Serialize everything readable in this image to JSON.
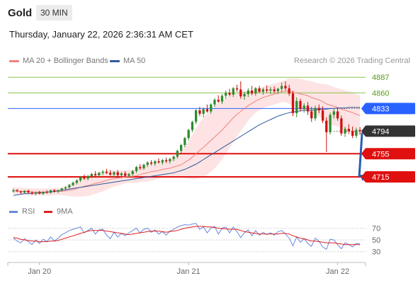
{
  "header": {
    "symbol": "Gold",
    "timeframe": "30 MIN",
    "datetime": "Thursday, January 22, 2026 2:36:31 AM CET"
  },
  "legend": {
    "ma20_label": "MA 20 + Bollinger Bands",
    "ma50_label": "MA 50",
    "credit": "Research © 2026 Trading Central"
  },
  "rsi_legend": {
    "rsi_label": "RSI",
    "ma_label": "9MA"
  },
  "colors": {
    "ma20": "#f08080",
    "band_fill": "#fde0e0",
    "ma50": "#2c5aa0",
    "bull": "#2e8b2e",
    "bear": "#d01010",
    "resistance": "#8bc34a",
    "support": "#e01010",
    "pivot": "#2962ff",
    "last": "#333333",
    "rsi": "#6688dd",
    "rsi_ma": "#e02020"
  },
  "chart_data": {
    "type": "candlestick",
    "title": "",
    "price_levels": [
      {
        "value": 4887,
        "label": "4887",
        "kind": "resistance"
      },
      {
        "value": 4860,
        "label": "4860",
        "kind": "resistance"
      },
      {
        "value": 4833,
        "label": "4833",
        "kind": "pivot"
      },
      {
        "value": 4794,
        "label": "4794",
        "kind": "last"
      },
      {
        "value": 4755,
        "label": "4755",
        "kind": "support"
      },
      {
        "value": 4715,
        "label": "4715",
        "kind": "support"
      }
    ],
    "x_ticks": [
      "Jan 20",
      "Jan 21",
      "Jan 22"
    ],
    "x_tick_bars": [
      7,
      47,
      87
    ],
    "ylim": [
      4676,
      4908
    ],
    "candles": [
      [
        4690,
        4695,
        4688,
        4692
      ],
      [
        4692,
        4694,
        4689,
        4690
      ],
      [
        4690,
        4691,
        4686,
        4688
      ],
      [
        4688,
        4692,
        4686,
        4691
      ],
      [
        4691,
        4693,
        4687,
        4688
      ],
      [
        4688,
        4690,
        4684,
        4686
      ],
      [
        4686,
        4689,
        4683,
        4688
      ],
      [
        4688,
        4691,
        4685,
        4686
      ],
      [
        4686,
        4690,
        4684,
        4689
      ],
      [
        4689,
        4692,
        4686,
        4688
      ],
      [
        4688,
        4693,
        4686,
        4692
      ],
      [
        4692,
        4694,
        4688,
        4690
      ],
      [
        4690,
        4693,
        4687,
        4692
      ],
      [
        4692,
        4696,
        4690,
        4695
      ],
      [
        4695,
        4699,
        4692,
        4697
      ],
      [
        4697,
        4703,
        4695,
        4701
      ],
      [
        4701,
        4707,
        4699,
        4705
      ],
      [
        4705,
        4711,
        4702,
        4709
      ],
      [
        4709,
        4716,
        4706,
        4714
      ],
      [
        4714,
        4719,
        4710,
        4712
      ],
      [
        4712,
        4718,
        4709,
        4716
      ],
      [
        4716,
        4722,
        4713,
        4720
      ],
      [
        4720,
        4725,
        4716,
        4718
      ],
      [
        4718,
        4724,
        4715,
        4722
      ],
      [
        4722,
        4727,
        4718,
        4724
      ],
      [
        4724,
        4729,
        4720,
        4722
      ],
      [
        4722,
        4727,
        4717,
        4719
      ],
      [
        4719,
        4725,
        4714,
        4723
      ],
      [
        4723,
        4727,
        4716,
        4718
      ],
      [
        4718,
        4723,
        4713,
        4721
      ],
      [
        4721,
        4725,
        4715,
        4717
      ],
      [
        4717,
        4722,
        4714,
        4720
      ],
      [
        4720,
        4727,
        4717,
        4725
      ],
      [
        4725,
        4734,
        4722,
        4732
      ],
      [
        4732,
        4737,
        4727,
        4730
      ],
      [
        4730,
        4738,
        4727,
        4736
      ],
      [
        4736,
        4742,
        4732,
        4740
      ],
      [
        4740,
        4744,
        4735,
        4738
      ],
      [
        4738,
        4744,
        4734,
        4742
      ],
      [
        4742,
        4747,
        4738,
        4740
      ],
      [
        4740,
        4746,
        4736,
        4744
      ],
      [
        4744,
        4748,
        4739,
        4742
      ],
      [
        4742,
        4748,
        4738,
        4746
      ],
      [
        4746,
        4752,
        4742,
        4750
      ],
      [
        4750,
        4762,
        4747,
        4760
      ],
      [
        4760,
        4772,
        4756,
        4770
      ],
      [
        4770,
        4784,
        4766,
        4782
      ],
      [
        4782,
        4798,
        4778,
        4796
      ],
      [
        4796,
        4812,
        4792,
        4810
      ],
      [
        4810,
        4832,
        4806,
        4830
      ],
      [
        4830,
        4836,
        4820,
        4824
      ],
      [
        4824,
        4835,
        4818,
        4832
      ],
      [
        4832,
        4840,
        4826,
        4828
      ],
      [
        4828,
        4842,
        4824,
        4840
      ],
      [
        4840,
        4851,
        4836,
        4848
      ],
      [
        4848,
        4856,
        4843,
        4845
      ],
      [
        4845,
        4858,
        4841,
        4855
      ],
      [
        4855,
        4864,
        4850,
        4860
      ],
      [
        4860,
        4867,
        4854,
        4857
      ],
      [
        4857,
        4870,
        4853,
        4868
      ],
      [
        4868,
        4874,
        4862,
        4866
      ],
      [
        4866,
        4880,
        4850,
        4854
      ],
      [
        4854,
        4862,
        4848,
        4858
      ],
      [
        4858,
        4868,
        4853,
        4864
      ],
      [
        4864,
        4872,
        4856,
        4859
      ],
      [
        4859,
        4870,
        4855,
        4868
      ],
      [
        4868,
        4872,
        4860,
        4862
      ],
      [
        4862,
        4869,
        4857,
        4866
      ],
      [
        4866,
        4873,
        4860,
        4864
      ],
      [
        4864,
        4870,
        4858,
        4866
      ],
      [
        4866,
        4871,
        4860,
        4863
      ],
      [
        4863,
        4869,
        4858,
        4867
      ],
      [
        4867,
        4878,
        4862,
        4872
      ],
      [
        4872,
        4880,
        4864,
        4868
      ],
      [
        4868,
        4874,
        4855,
        4859
      ],
      [
        4859,
        4864,
        4820,
        4825
      ],
      [
        4825,
        4852,
        4818,
        4846
      ],
      [
        4846,
        4850,
        4828,
        4832
      ],
      [
        4832,
        4842,
        4826,
        4838
      ],
      [
        4838,
        4844,
        4822,
        4828
      ],
      [
        4828,
        4836,
        4810,
        4816
      ],
      [
        4816,
        4838,
        4812,
        4834
      ],
      [
        4834,
        4840,
        4825,
        4830
      ],
      [
        4830,
        4837,
        4808,
        4812
      ],
      [
        4812,
        4818,
        4758,
        4792
      ],
      [
        4792,
        4826,
        4788,
        4822
      ],
      [
        4822,
        4832,
        4816,
        4828
      ],
      [
        4828,
        4834,
        4812,
        4816
      ],
      [
        4816,
        4821,
        4786,
        4790
      ],
      [
        4790,
        4802,
        4784,
        4798
      ],
      [
        4798,
        4806,
        4789,
        4794
      ],
      [
        4794,
        4802,
        4782,
        4786
      ],
      [
        4786,
        4800,
        4782,
        4796
      ],
      [
        4796,
        4801,
        4788,
        4794
      ]
    ],
    "ma20": [
      4691,
      4691,
      4690,
      4690,
      4690,
      4689,
      4689,
      4689,
      4689,
      4689,
      4689,
      4690,
      4690,
      4690,
      4691,
      4692,
      4693,
      4695,
      4697,
      4699,
      4700,
      4702,
      4704,
      4705,
      4707,
      4709,
      4711,
      4712,
      4713,
      4714,
      4715,
      4716,
      4716,
      4717,
      4719,
      4721,
      4722,
      4724,
      4725,
      4726,
      4728,
      4729,
      4730,
      4732,
      4734,
      4736,
      4740,
      4744,
      4749,
      4755,
      4761,
      4766,
      4772,
      4778,
      4784,
      4790,
      4796,
      4803,
      4810,
      4817,
      4823,
      4828,
      4833,
      4838,
      4842,
      4846,
      4849,
      4852,
      4854,
      4856,
      4858,
      4860,
      4862,
      4863,
      4863,
      4861,
      4860,
      4858,
      4857,
      4855,
      4852,
      4850,
      4848,
      4845,
      4841,
      4839,
      4837,
      4835,
      4832,
      4830,
      4828,
      4826,
      4823,
      4821
    ],
    "bb_half": [
      6,
      6,
      6,
      6,
      6,
      6,
      6,
      6,
      6,
      6,
      6,
      6,
      6,
      7,
      8,
      10,
      12,
      14,
      16,
      17,
      18,
      18,
      18,
      17,
      17,
      16,
      15,
      14,
      13,
      12,
      11,
      11,
      11,
      12,
      13,
      14,
      15,
      15,
      15,
      14,
      14,
      14,
      15,
      16,
      18,
      22,
      27,
      32,
      38,
      44,
      48,
      51,
      53,
      54,
      54,
      53,
      51,
      48,
      45,
      42,
      38,
      34,
      30,
      26,
      22,
      20,
      19,
      18,
      18,
      18,
      18,
      18,
      18,
      19,
      22,
      24,
      25,
      26,
      26,
      26,
      28,
      28,
      28,
      30,
      34,
      34,
      33,
      33,
      34,
      34,
      35,
      35,
      35,
      35
    ],
    "ma50": [
      4683,
      4684,
      4685,
      4686,
      4686,
      4687,
      4687,
      4688,
      4688,
      4689,
      4689,
      4690,
      4691,
      4692,
      4693,
      4694,
      4695,
      4696,
      4697,
      4698,
      4699,
      4700,
      4701,
      4702,
      4703,
      4704,
      4705,
      4706,
      4707,
      4708,
      4709,
      4710,
      4711,
      4712,
      4713,
      4714,
      4715,
      4716,
      4717,
      4718,
      4719,
      4720,
      4721,
      4722,
      4724,
      4726,
      4728,
      4731,
      4734,
      4737,
      4741,
      4745,
      4749,
      4753,
      4757,
      4761,
      4765,
      4769,
      4773,
      4777,
      4781,
      4785,
      4789,
      4793,
      4797,
      4801,
      4805,
      4808,
      4811,
      4814,
      4817,
      4820,
      4822,
      4824,
      4826,
      4827,
      4828,
      4829,
      4830,
      4830,
      4830,
      4831,
      4831,
      4832,
      4832,
      4833,
      4833,
      4834,
      4834,
      4834,
      4835,
      4835,
      4835,
      4835
    ],
    "forecast_arrow": {
      "from_bar": 93,
      "from": 4794,
      "to": 4715
    },
    "rsi": {
      "ticks": [
        70,
        50,
        30
      ],
      "ylim": [
        20,
        85
      ],
      "rsi": [
        53,
        48,
        45,
        52,
        47,
        42,
        50,
        44,
        51,
        47,
        55,
        48,
        53,
        59,
        62,
        66,
        68,
        70,
        72,
        62,
        66,
        70,
        60,
        67,
        68,
        58,
        52,
        63,
        55,
        61,
        57,
        62,
        66,
        70,
        62,
        68,
        70,
        63,
        67,
        60,
        64,
        58,
        65,
        68,
        72,
        74,
        76,
        75,
        77,
        78,
        68,
        72,
        62,
        70,
        73,
        60,
        70,
        72,
        62,
        72,
        64,
        54,
        62,
        67,
        57,
        66,
        58,
        63,
        59,
        62,
        58,
        64,
        66,
        60,
        53,
        40,
        55,
        46,
        52,
        44,
        39,
        53,
        48,
        38,
        34,
        51,
        50,
        42,
        35,
        45,
        42,
        38,
        44,
        43
      ],
      "ma": [
        54,
        53,
        51,
        50,
        49,
        48,
        48,
        47,
        47,
        47,
        48,
        48,
        49,
        51,
        53,
        55,
        57,
        59,
        61,
        63,
        65,
        66,
        66,
        66,
        66,
        65,
        64,
        63,
        62,
        61,
        60,
        59,
        60,
        61,
        62,
        63,
        64,
        65,
        65,
        65,
        64,
        63,
        64,
        65,
        66,
        68,
        70,
        71,
        72,
        73,
        73,
        73,
        72,
        72,
        71,
        70,
        69,
        69,
        68,
        68,
        68,
        66,
        64,
        63,
        62,
        61,
        60,
        60,
        60,
        60,
        60,
        60,
        61,
        61,
        60,
        57,
        55,
        53,
        52,
        50,
        48,
        48,
        47,
        46,
        45,
        45,
        45,
        44,
        43,
        42,
        42,
        42,
        42,
        42
      ]
    }
  }
}
